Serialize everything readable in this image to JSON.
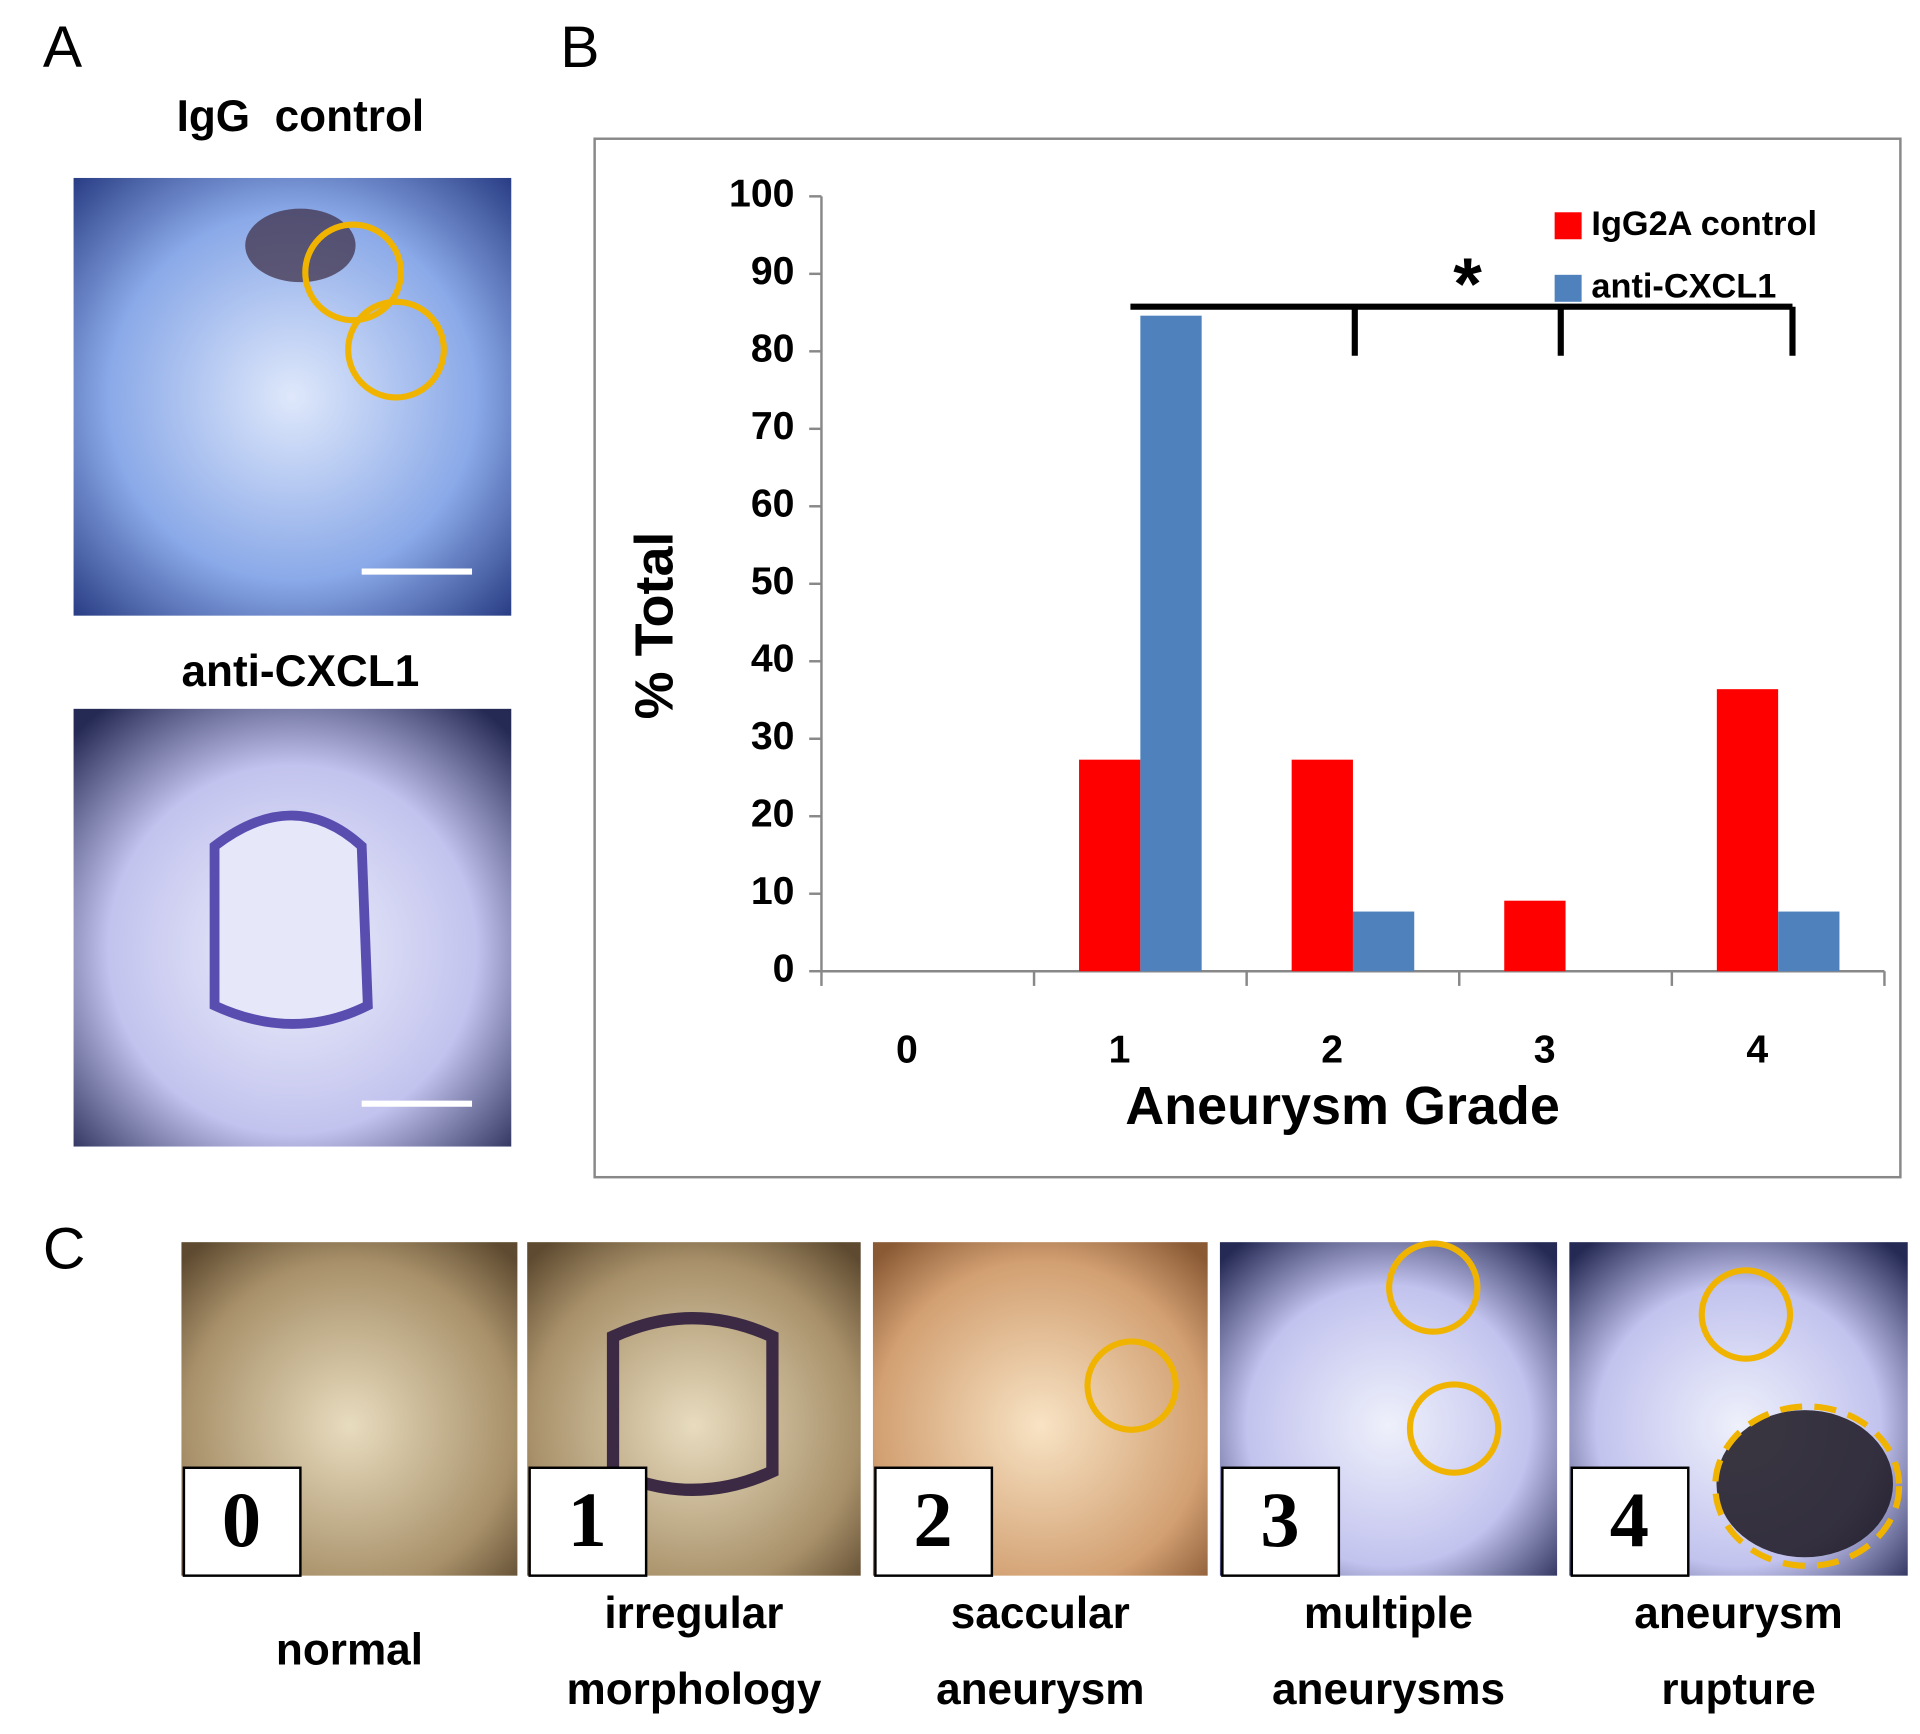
{
  "panels": {
    "a": {
      "label": "A",
      "captions": [
        "IgG  control",
        "anti-CXCL1"
      ]
    },
    "b": {
      "label": "B"
    },
    "c": {
      "label": "C",
      "grades": [
        {
          "number": "0",
          "lines": [
            "normal"
          ]
        },
        {
          "number": "1",
          "lines": [
            "irregular",
            "morphology"
          ]
        },
        {
          "number": "2",
          "lines": [
            "saccular",
            "aneurysm"
          ]
        },
        {
          "number": "3",
          "lines": [
            "multiple",
            "aneurysms"
          ]
        },
        {
          "number": "4",
          "lines": [
            "aneurysm",
            "rupture"
          ]
        }
      ]
    }
  },
  "chart_data": {
    "type": "bar",
    "xlabel": "Aneurysm Grade",
    "ylabel": "% Total",
    "annotation": "*",
    "categories": [
      "0",
      "1",
      "2",
      "3",
      "4"
    ],
    "series": [
      {
        "name": "IgG2A control",
        "color": "#ff0000",
        "values": [
          0,
          27.3,
          27.3,
          9.1,
          36.4
        ]
      },
      {
        "name": "anti-CXCL1",
        "color": "#4f81bd",
        "values": [
          0,
          84.6,
          7.7,
          0,
          7.7
        ]
      }
    ],
    "ylim": [
      0,
      100
    ],
    "yticks": [
      0,
      10,
      20,
      30,
      40,
      50,
      60,
      70,
      80,
      90,
      100
    ],
    "legend": "upper right",
    "grid": false
  }
}
